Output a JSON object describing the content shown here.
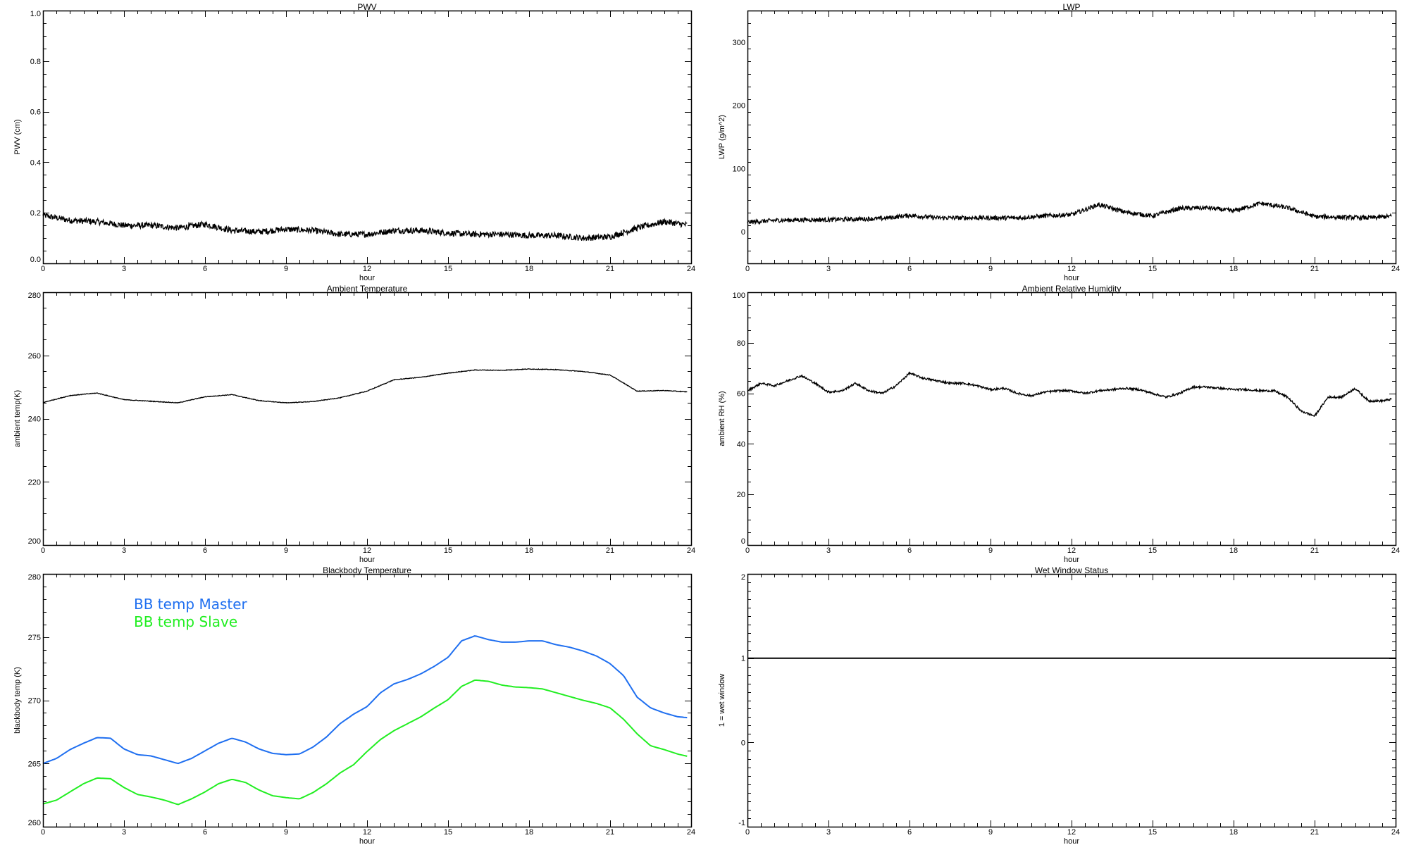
{
  "colors": {
    "axis": "#000000",
    "master": "#1f6ff0",
    "slave": "#22ee22",
    "line": "#000000"
  },
  "chart_data": [
    {
      "id": "pwv",
      "type": "line",
      "title": "PWV",
      "xlabel": "hour",
      "ylabel": "PWV (cm)",
      "xlim": [
        0,
        24
      ],
      "ylim": [
        0,
        1
      ],
      "xticks": [
        0,
        3,
        6,
        9,
        12,
        15,
        18,
        21,
        24
      ],
      "x_minor": 0.5,
      "yticks": [
        0,
        0.2,
        0.4,
        0.6,
        0.8,
        1.0
      ],
      "ytick_labels": [
        "0.0",
        "0.2",
        "0.4",
        "0.6",
        "0.8",
        "1.0"
      ],
      "y_minor": 0.05,
      "series": [
        {
          "name": "PWV",
          "color": "#000000",
          "x_step": 1,
          "x_end": 23.85,
          "noise": 0.012,
          "values": [
            0.19,
            0.17,
            0.165,
            0.15,
            0.15,
            0.14,
            0.155,
            0.13,
            0.125,
            0.135,
            0.13,
            0.115,
            0.115,
            0.13,
            0.13,
            0.12,
            0.115,
            0.115,
            0.11,
            0.11,
            0.1,
            0.105,
            0.14,
            0.165,
            0.15
          ]
        }
      ]
    },
    {
      "id": "lwp",
      "type": "line",
      "title": "LWP",
      "xlabel": "hour",
      "ylabel": "LWP (g/m^2)",
      "xlim": [
        0,
        24
      ],
      "ylim": [
        -50,
        350
      ],
      "xticks": [
        0,
        3,
        6,
        9,
        12,
        15,
        18,
        21,
        24
      ],
      "x_minor": 0.5,
      "yticks": [
        0,
        100,
        200,
        300
      ],
      "ytick_labels": [
        "0",
        "100",
        "200",
        "300"
      ],
      "y_minor": 20,
      "series": [
        {
          "name": "LWP",
          "color": "#000000",
          "x_step": 1,
          "x_end": 23.85,
          "noise": 3.5,
          "values": [
            15,
            18,
            19,
            19,
            20,
            21,
            26,
            22,
            22,
            22,
            22,
            25,
            27,
            43,
            31,
            25,
            37,
            38,
            33,
            45,
            38,
            24,
            23,
            22,
            25
          ]
        }
      ]
    },
    {
      "id": "ambient-temp",
      "type": "line",
      "title": "Ambient Temperature",
      "xlabel": "hour",
      "ylabel": "ambient temp(K)",
      "xlim": [
        0,
        24
      ],
      "ylim": [
        200,
        280
      ],
      "xticks": [
        0,
        3,
        6,
        9,
        12,
        15,
        18,
        21,
        24
      ],
      "x_minor": 0.5,
      "yticks": [
        200,
        220,
        240,
        260,
        280
      ],
      "ytick_labels": [
        "200",
        "220",
        "240",
        "260",
        "280"
      ],
      "y_minor": 5,
      "series": [
        {
          "name": "ambient temp",
          "color": "#000000",
          "x_step": 1,
          "x_end": 23.85,
          "noise": 0.1,
          "values": [
            245.1,
            247.3,
            248.1,
            246.0,
            245.5,
            245.0,
            246.9,
            247.6,
            245.7,
            245.0,
            245.4,
            246.6,
            248.7,
            252.3,
            253.1,
            254.4,
            255.4,
            255.3,
            255.7,
            255.5,
            254.9,
            253.8,
            248.7,
            248.9,
            248.4
          ]
        }
      ]
    },
    {
      "id": "ambient-rh",
      "type": "line",
      "title": "Ambient Relative Humidity",
      "xlabel": "hour",
      "ylabel": "ambient RH (%)",
      "xlim": [
        0,
        24
      ],
      "ylim": [
        0,
        100
      ],
      "xticks": [
        0,
        3,
        6,
        9,
        12,
        15,
        18,
        21,
        24
      ],
      "x_minor": 0.5,
      "yticks": [
        0,
        20,
        40,
        60,
        80,
        100
      ],
      "ytick_labels": [
        "0",
        "20",
        "40",
        "60",
        "80",
        "100"
      ],
      "y_minor": 5,
      "series": [
        {
          "name": "ambient RH",
          "color": "#000000",
          "x_step": 0.5,
          "x_end": 23.85,
          "noise": 0.4,
          "values": [
            61,
            64,
            63,
            65,
            67,
            64,
            60.5,
            61,
            64,
            61,
            60,
            63,
            68,
            66,
            65,
            64,
            64,
            63,
            61.5,
            62,
            60,
            59,
            60.5,
            61,
            61,
            60,
            61,
            61.5,
            62,
            61.5,
            60,
            58.5,
            60,
            62.5,
            62.5,
            62,
            61.5,
            61.5,
            61,
            61,
            58.5,
            53,
            51,
            58.5,
            58.5,
            62,
            57,
            57,
            58
          ]
        }
      ]
    },
    {
      "id": "blackbody-temp",
      "type": "line",
      "title": "Blackbody Temperature",
      "xlabel": "hour",
      "ylabel": "blackbody temp (K)",
      "xlim": [
        0,
        24
      ],
      "ylim": [
        260,
        280
      ],
      "xticks": [
        0,
        3,
        6,
        9,
        12,
        15,
        18,
        21,
        24
      ],
      "x_minor": 0.5,
      "yticks": [
        260,
        265,
        270,
        275,
        280
      ],
      "ytick_labels": [
        "260",
        "265",
        "270",
        "275",
        "280"
      ],
      "y_minor": 1,
      "legend": {
        "placement": "top-left",
        "entries": [
          "BB temp Master",
          "BB temp Slave"
        ]
      },
      "series": [
        {
          "name": "BB temp Master",
          "color": "#1f6ff0",
          "x_step": 0.5,
          "x_end": 23.85,
          "noise": 0,
          "values": [
            265.0,
            265.4,
            266.1,
            266.6,
            267.05,
            267.0,
            266.15,
            265.7,
            265.6,
            265.3,
            265.0,
            265.4,
            266.0,
            266.6,
            267.0,
            266.7,
            266.15,
            265.8,
            265.7,
            265.75,
            266.3,
            267.1,
            268.15,
            268.9,
            269.5,
            270.6,
            271.3,
            271.65,
            272.1,
            272.7,
            273.4,
            274.7,
            275.1,
            274.8,
            274.6,
            274.6,
            274.7,
            274.7,
            274.4,
            274.2,
            273.9,
            273.5,
            272.9,
            271.95,
            270.25,
            269.4,
            269.0,
            268.7,
            268.6
          ]
        },
        {
          "name": "BB temp Slave",
          "color": "#22ee22",
          "x_step": 0.5,
          "x_end": 23.85,
          "noise": 0,
          "values": [
            261.8,
            262.1,
            262.75,
            263.4,
            263.85,
            263.8,
            263.1,
            262.55,
            262.35,
            262.1,
            261.75,
            262.2,
            262.75,
            263.4,
            263.75,
            263.5,
            262.9,
            262.45,
            262.3,
            262.2,
            262.7,
            263.4,
            264.25,
            264.9,
            265.95,
            266.9,
            267.6,
            268.15,
            268.7,
            269.4,
            270.05,
            271.1,
            271.6,
            271.5,
            271.2,
            271.05,
            271.0,
            270.9,
            270.6,
            270.3,
            270.0,
            269.75,
            269.4,
            268.5,
            267.35,
            266.4,
            266.1,
            265.75,
            265.5
          ]
        }
      ]
    },
    {
      "id": "wet-window",
      "type": "line",
      "title": "Wet Window Status",
      "xlabel": "hour",
      "ylabel": "1 = wet window",
      "xlim": [
        0,
        24
      ],
      "ylim": [
        -1,
        2
      ],
      "xticks": [
        0,
        3,
        6,
        9,
        12,
        15,
        18,
        21,
        24
      ],
      "x_minor": 0.5,
      "yticks": [
        -1,
        0,
        1,
        2
      ],
      "ytick_labels": [
        "-1",
        "0",
        "1",
        "2"
      ],
      "y_minor": 0.1,
      "series": [
        {
          "name": "wet window",
          "color": "#000000",
          "x_step": 24,
          "x_end": 24,
          "noise": 0,
          "values": [
            1,
            1
          ]
        }
      ]
    }
  ]
}
